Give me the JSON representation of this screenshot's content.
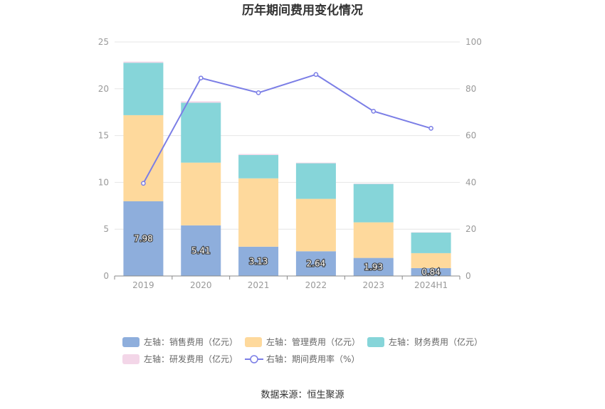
{
  "chart_data": {
    "type": "bar",
    "title": "历年期间费用变化情况",
    "categories": [
      "2019",
      "2020",
      "2021",
      "2022",
      "2023",
      "2024H1"
    ],
    "series": [
      {
        "name": "左轴：销售费用（亿元）",
        "axis": "left",
        "type": "bar",
        "color": "#8eaedc",
        "values": [
          7.98,
          5.41,
          3.13,
          2.64,
          1.93,
          0.84
        ],
        "data_labels": [
          "7.98",
          "5.41",
          "3.13",
          "2.64",
          "1.93",
          "0.84"
        ]
      },
      {
        "name": "左轴：管理费用（亿元）",
        "axis": "left",
        "type": "bar",
        "color": "#fed99c",
        "values": [
          9.2,
          6.7,
          7.3,
          5.6,
          3.8,
          1.6
        ]
      },
      {
        "name": "左轴：财务费用（亿元）",
        "axis": "left",
        "type": "bar",
        "color": "#86d5d9",
        "values": [
          5.6,
          6.4,
          2.5,
          3.8,
          4.1,
          2.2
        ]
      },
      {
        "name": "左轴：研发费用（亿元）",
        "axis": "left",
        "type": "bar",
        "color": "#f3d6e8",
        "values": [
          0.12,
          0.15,
          0.1,
          0.07,
          0.05,
          0.03
        ]
      },
      {
        "name": "右轴：期间费用率（%）",
        "axis": "right",
        "type": "line",
        "color": "#7b7ee6",
        "values": [
          39.6,
          84.6,
          78.3,
          86.1,
          70.4,
          63.1
        ]
      }
    ],
    "left_axis": {
      "ylim": [
        0,
        25
      ],
      "ticks": [
        "0",
        "5",
        "10",
        "15",
        "20",
        "25"
      ]
    },
    "right_axis": {
      "ylim": [
        0,
        100
      ],
      "ticks": [
        "0",
        "20",
        "40",
        "60",
        "80",
        "100"
      ]
    },
    "grid": true,
    "legend_position": "bottom",
    "source": "数据来源：恒生聚源"
  }
}
